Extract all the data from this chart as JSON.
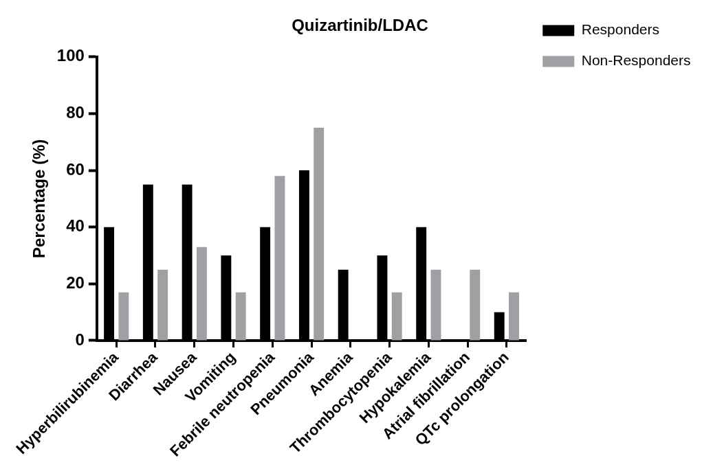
{
  "chart_data": {
    "type": "bar",
    "title": "Quizartinib/LDAC",
    "ylabel": "Percentage (%)",
    "categories": [
      "Hyperbilirubinemia",
      "Diarrhea",
      "Nausea",
      "Vomiting",
      "Febrile neutropenia",
      "Pneumonia",
      "Anemia",
      "Thrombocytopenia",
      "Hypokalemia",
      "Atrial fibrillation",
      "QTc prolongation"
    ],
    "series": [
      {
        "name": "Responders",
        "color": "#000000",
        "values": [
          40,
          55,
          55,
          30,
          40,
          60,
          25,
          30,
          40,
          0,
          10
        ]
      },
      {
        "name": "Non-Responders",
        "color": "#a0a0a4",
        "values": [
          17,
          25,
          33,
          17,
          58,
          75,
          0,
          17,
          25,
          25,
          17
        ]
      }
    ],
    "ylim": [
      0,
      100
    ],
    "yticks": [
      0,
      20,
      40,
      60,
      80,
      100
    ],
    "grid": false,
    "legend": "top right"
  }
}
